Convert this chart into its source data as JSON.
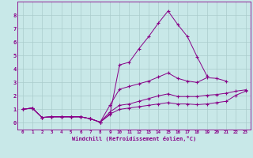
{
  "xlabel": "Windchill (Refroidissement éolien,°C)",
  "bg_color": "#c8e8e8",
  "line_color": "#880088",
  "grid_color": "#aacccc",
  "xlim": [
    -0.5,
    23.5
  ],
  "ylim": [
    -0.5,
    9.0
  ],
  "xticks": [
    0,
    1,
    2,
    3,
    4,
    5,
    6,
    7,
    8,
    9,
    10,
    11,
    12,
    13,
    14,
    15,
    16,
    17,
    18,
    19,
    20,
    21,
    22,
    23
  ],
  "yticks": [
    0,
    1,
    2,
    3,
    4,
    5,
    6,
    7,
    8
  ],
  "lines": [
    {
      "x": [
        0,
        1,
        2,
        3,
        4,
        5,
        6,
        7,
        8,
        9,
        10,
        11,
        12,
        13,
        14,
        15,
        16,
        17,
        18,
        19
      ],
      "y": [
        1.0,
        1.1,
        0.4,
        0.45,
        0.45,
        0.45,
        0.45,
        0.3,
        0.05,
        0.6,
        4.3,
        4.5,
        5.5,
        6.4,
        7.4,
        8.3,
        7.3,
        6.4,
        4.9,
        3.5
      ]
    },
    {
      "x": [
        0,
        1,
        2,
        3,
        4,
        5,
        6,
        7,
        8,
        9,
        10,
        11,
        12,
        13,
        14,
        15,
        16,
        17,
        18,
        19,
        20,
        21
      ],
      "y": [
        1.0,
        1.1,
        0.4,
        0.45,
        0.45,
        0.45,
        0.45,
        0.3,
        0.05,
        1.3,
        2.5,
        2.7,
        2.9,
        3.1,
        3.4,
        3.7,
        3.3,
        3.1,
        3.0,
        3.35,
        3.3,
        3.1
      ]
    },
    {
      "x": [
        0,
        1,
        2,
        3,
        4,
        5,
        6,
        7,
        8,
        9,
        10,
        11,
        12,
        13,
        14,
        15,
        16,
        17,
        18,
        19,
        20,
        21,
        22,
        23
      ],
      "y": [
        1.0,
        1.1,
        0.4,
        0.45,
        0.45,
        0.45,
        0.45,
        0.3,
        0.05,
        0.8,
        1.3,
        1.4,
        1.6,
        1.8,
        2.0,
        2.15,
        1.95,
        1.95,
        1.95,
        2.05,
        2.1,
        2.2,
        2.35,
        2.45
      ]
    },
    {
      "x": [
        0,
        1,
        2,
        3,
        4,
        5,
        6,
        7,
        8,
        9,
        10,
        11,
        12,
        13,
        14,
        15,
        16,
        17,
        18,
        19,
        20,
        21,
        22,
        23
      ],
      "y": [
        1.0,
        1.1,
        0.4,
        0.45,
        0.45,
        0.45,
        0.45,
        0.3,
        0.05,
        0.65,
        1.0,
        1.1,
        1.2,
        1.3,
        1.4,
        1.5,
        1.4,
        1.4,
        1.35,
        1.4,
        1.5,
        1.6,
        2.05,
        2.35
      ]
    }
  ]
}
